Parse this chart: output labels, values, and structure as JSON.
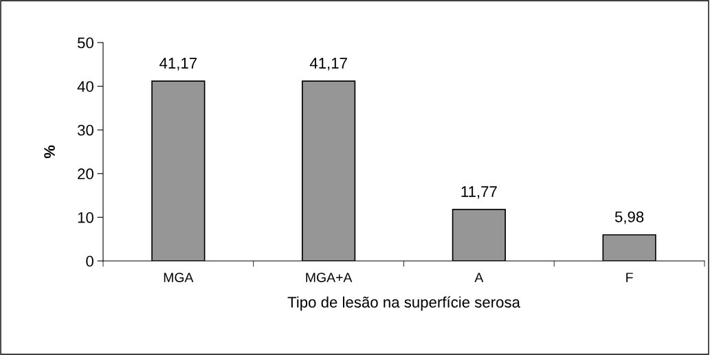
{
  "chart_data": {
    "type": "bar",
    "xlabel": "Tipo de lesão na superfície serosa",
    "ylabel": "%",
    "categories": [
      "MGA",
      "MGA+A",
      "A",
      "F"
    ],
    "values": [
      41.17,
      41.17,
      11.77,
      5.98
    ],
    "value_labels": [
      "41,17",
      "41,17",
      "11,77",
      "5,98"
    ],
    "color": "#969696",
    "ylim": [
      0,
      50
    ],
    "yticks": [
      0,
      10,
      20,
      30,
      40,
      50
    ],
    "grid": false,
    "legend": false
  }
}
